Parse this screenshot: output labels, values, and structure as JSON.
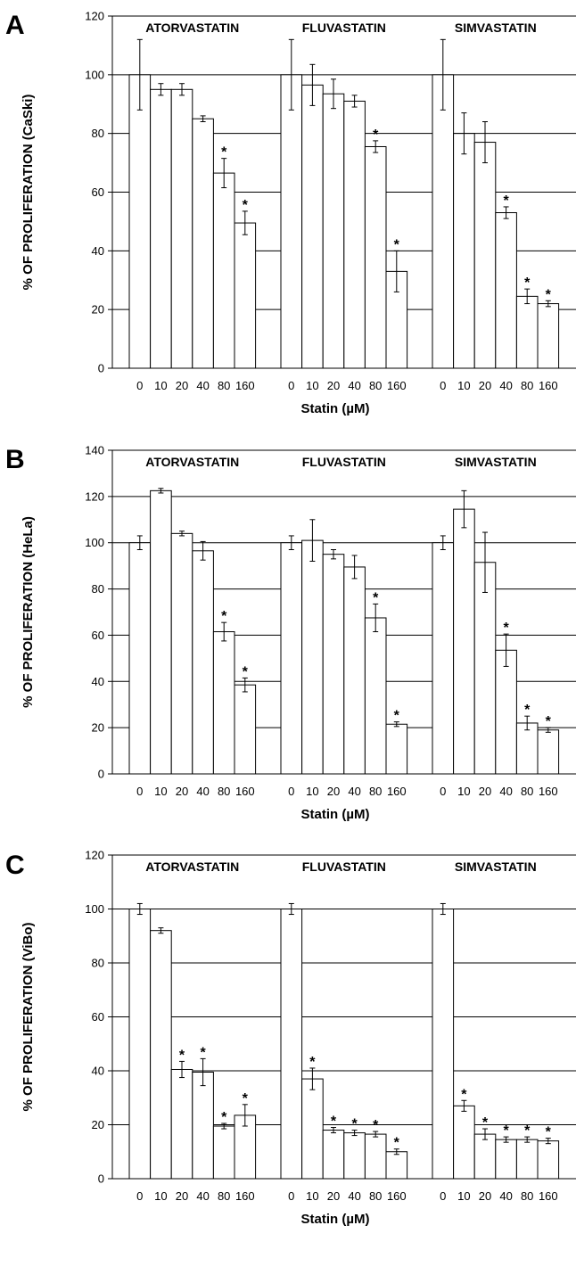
{
  "chart_data": [
    {
      "type": "bar",
      "panel_letter": "A",
      "ylabel": "% OF PROLIFERATION (CaSki)",
      "xlabel": "Statin (µM)",
      "ylim": [
        0,
        120
      ],
      "yticks": [
        0,
        20,
        40,
        60,
        80,
        100,
        120
      ],
      "grid": true,
      "categories": [
        "0",
        "10",
        "20",
        "40",
        "80",
        "160"
      ],
      "groups": [
        {
          "name": "ATORVASTATIN",
          "values": [
            100,
            95,
            95,
            85,
            66.5,
            49.5
          ],
          "errors": [
            12,
            2,
            2,
            1,
            5,
            4
          ],
          "significant": [
            false,
            false,
            false,
            false,
            true,
            true
          ]
        },
        {
          "name": "FLUVASTATIN",
          "values": [
            100,
            96.5,
            93.5,
            91,
            75.5,
            33
          ],
          "errors": [
            12,
            7,
            5,
            2,
            2,
            7
          ],
          "significant": [
            false,
            false,
            false,
            false,
            true,
            true
          ]
        },
        {
          "name": "SIMVASTATIN",
          "values": [
            100,
            80,
            77,
            53,
            24.5,
            22
          ],
          "errors": [
            12,
            7,
            7,
            2,
            2.5,
            1
          ],
          "significant": [
            false,
            false,
            false,
            true,
            true,
            true
          ]
        }
      ]
    },
    {
      "type": "bar",
      "panel_letter": "B",
      "ylabel": "% OF PROLIFERATION (HeLa)",
      "xlabel": "Statin (µM)",
      "ylim": [
        0,
        140
      ],
      "yticks": [
        0,
        20,
        40,
        60,
        80,
        100,
        120,
        140
      ],
      "grid": true,
      "categories": [
        "0",
        "10",
        "20",
        "40",
        "80",
        "160"
      ],
      "groups": [
        {
          "name": "ATORVASTATIN",
          "values": [
            100,
            122.5,
            104,
            96.5,
            61.5,
            38.5
          ],
          "errors": [
            3,
            1,
            1,
            4,
            4,
            3
          ],
          "significant": [
            false,
            false,
            false,
            false,
            true,
            true
          ]
        },
        {
          "name": "FLUVASTATIN",
          "values": [
            100,
            101,
            95,
            89.5,
            67.5,
            21.5
          ],
          "errors": [
            3,
            9,
            2,
            5,
            6,
            1
          ],
          "significant": [
            false,
            false,
            false,
            false,
            true,
            true
          ]
        },
        {
          "name": "SIMVASTATIN",
          "values": [
            100,
            114.5,
            91.5,
            53.5,
            22,
            19
          ],
          "errors": [
            3,
            8,
            13,
            7,
            3,
            1
          ],
          "significant": [
            false,
            false,
            false,
            true,
            true,
            true
          ]
        }
      ]
    },
    {
      "type": "bar",
      "panel_letter": "C",
      "ylabel": "% OF PROLIFERATION (ViBo)",
      "xlabel": "Statin (µM)",
      "ylim": [
        0,
        120
      ],
      "yticks": [
        0,
        20,
        40,
        60,
        80,
        100,
        120
      ],
      "grid": true,
      "categories": [
        "0",
        "10",
        "20",
        "40",
        "80",
        "160"
      ],
      "groups": [
        {
          "name": "ATORVASTATIN",
          "values": [
            100,
            92,
            40.5,
            39.5,
            19.5,
            23.5
          ],
          "errors": [
            2,
            1,
            3,
            5,
            1,
            4
          ],
          "significant": [
            false,
            false,
            true,
            true,
            true,
            true
          ]
        },
        {
          "name": "FLUVASTATIN",
          "values": [
            100,
            37,
            18,
            17,
            16.5,
            10
          ],
          "errors": [
            2,
            4,
            1,
            1,
            1,
            1
          ],
          "significant": [
            false,
            true,
            true,
            true,
            true,
            true
          ]
        },
        {
          "name": "SIMVASTATIN",
          "values": [
            100,
            27,
            16.5,
            14.5,
            14.5,
            14
          ],
          "errors": [
            2,
            2,
            2,
            1,
            1,
            1
          ],
          "significant": [
            false,
            true,
            true,
            true,
            true,
            true
          ]
        }
      ]
    }
  ]
}
